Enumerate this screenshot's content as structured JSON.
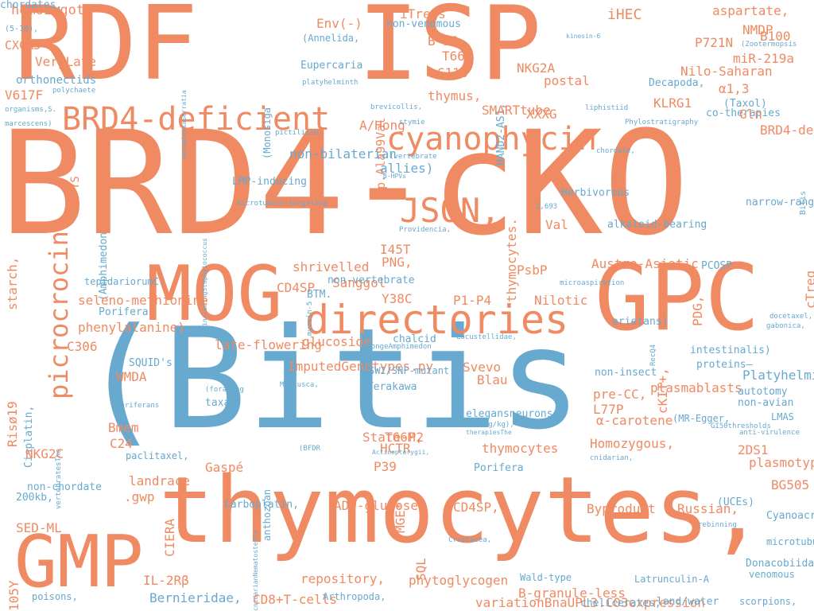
{
  "palette": {
    "orange": "#ef8a62",
    "blue": "#67a9cf"
  },
  "words": [
    {
      "t": "RDF",
      "s": 128,
      "c": "orange"
    },
    {
      "t": "ISP",
      "s": 128,
      "c": "orange"
    },
    {
      "t": "BRD4-cKO",
      "s": 180,
      "c": "orange"
    },
    {
      "t": "(Bitis",
      "s": 175,
      "c": "blue"
    },
    {
      "t": "thymocytes,",
      "s": 115,
      "c": "orange"
    },
    {
      "t": "GPC",
      "s": 115,
      "c": "orange"
    },
    {
      "t": "MOG",
      "s": 95,
      "c": "orange"
    },
    {
      "t": "GMP",
      "s": 90,
      "c": "orange"
    },
    {
      "t": "directories",
      "s": 50,
      "c": "orange"
    },
    {
      "t": "cyanophycin",
      "s": 40,
      "c": "orange"
    },
    {
      "t": "BRD4-deficient",
      "s": 40,
      "c": "orange"
    },
    {
      "t": "JSON,",
      "s": 42,
      "c": "orange"
    },
    {
      "t": "picrocrocin",
      "s": 32,
      "c": "orange"
    },
    {
      "t": "homozygote",
      "s": 17,
      "c": "orange"
    },
    {
      "t": "(5-10),",
      "s": 10,
      "c": "blue"
    },
    {
      "t": "CXCR5",
      "s": 15,
      "c": "orange"
    },
    {
      "t": "YS",
      "s": 14,
      "c": "orange"
    },
    {
      "t": "VeryLate",
      "s": 16,
      "c": "orange"
    },
    {
      "t": "orthonectids",
      "s": 14,
      "c": "blue"
    },
    {
      "t": "V617F",
      "s": 16,
      "c": "orange"
    },
    {
      "t": "polychaete",
      "s": 9,
      "c": "blue"
    },
    {
      "t": "organisms,S.",
      "s": 9,
      "c": "blue"
    },
    {
      "t": "marcescens)",
      "s": 9,
      "c": "blue"
    },
    {
      "t": "aeruginosaSerratia",
      "s": 8,
      "c": "blue"
    },
    {
      "t": "(Monosiga",
      "s": 12,
      "c": "blue"
    },
    {
      "t": "Env(-)",
      "s": 16,
      "c": "orange"
    },
    {
      "t": "iTregs",
      "s": 16,
      "c": "orange"
    },
    {
      "t": "non-venomous",
      "s": 13,
      "c": "blue"
    },
    {
      "t": "iHEC",
      "s": 18,
      "c": "orange"
    },
    {
      "t": "aspartate,",
      "s": 16,
      "c": "orange"
    },
    {
      "t": "NMDP",
      "s": 16,
      "c": "orange"
    },
    {
      "t": "B100",
      "s": 16,
      "c": "orange"
    },
    {
      "t": "(Zootermopsis",
      "s": 9,
      "c": "blue"
    },
    {
      "t": "(Annelida,",
      "s": 12,
      "c": "blue"
    },
    {
      "t": "p.Ala99Val",
      "s": 15,
      "c": "orange"
    },
    {
      "t": "B*35",
      "s": 16,
      "c": "orange"
    },
    {
      "t": "T66M",
      "s": 16,
      "c": "orange"
    },
    {
      "t": "HAND2-AS1,",
      "s": 13,
      "c": "blue"
    },
    {
      "t": "kinesin-6",
      "s": 8,
      "c": "blue"
    },
    {
      "t": "P721N",
      "s": 16,
      "c": "orange"
    },
    {
      "t": "miR-219a",
      "s": 16,
      "c": "orange"
    },
    {
      "t": "Eupercaria",
      "s": 13,
      "c": "blue"
    },
    {
      "t": "G118",
      "s": 16,
      "c": "orange"
    },
    {
      "t": "NKG2A",
      "s": 16,
      "c": "orange"
    },
    {
      "t": "Nilo-Saharan",
      "s": 16,
      "c": "orange"
    },
    {
      "t": "Bitis",
      "s": 10,
      "c": "blue"
    },
    {
      "t": "platyhelminth",
      "s": 9,
      "c": "blue"
    },
    {
      "t": "postal",
      "s": 16,
      "c": "orange"
    },
    {
      "t": "Decapoda,",
      "s": 13,
      "c": "blue"
    },
    {
      "t": "α1,3",
      "s": 16,
      "c": "orange"
    },
    {
      "t": "thymus,",
      "s": 16,
      "c": "orange"
    },
    {
      "t": "KLRG1",
      "s": 16,
      "c": "orange"
    },
    {
      "t": "(Taxol)",
      "s": 13,
      "c": "blue"
    },
    {
      "t": "brevicollis,",
      "s": 9,
      "c": "blue"
    },
    {
      "t": "SMARTtube",
      "s": 16,
      "c": "orange"
    },
    {
      "t": "XXXG",
      "s": 16,
      "c": "orange"
    },
    {
      "t": "liphistiid",
      "s": 9,
      "c": "blue"
    },
    {
      "t": "co-therapies",
      "s": 13,
      "c": "blue"
    },
    {
      "t": "Gln",
      "s": 16,
      "c": "orange"
    },
    {
      "t": "A/Hong",
      "s": 16,
      "c": "orange"
    },
    {
      "t": "stymie",
      "s": 9,
      "c": "blue"
    },
    {
      "t": "Phylostratigraphy",
      "s": 9,
      "c": "blue"
    },
    {
      "t": "BRD4-deleted",
      "s": 16,
      "c": "orange"
    },
    {
      "t": "pictilisib,",
      "s": 9,
      "c": "blue"
    },
    {
      "t": "(Amphimedon",
      "s": 13,
      "c": "blue"
    },
    {
      "t": "non-bilaterian",
      "s": 16,
      "c": "blue"
    },
    {
      "t": "(vertebrate",
      "s": 9,
      "c": "blue"
    },
    {
      "t": "allies)",
      "s": 16,
      "c": "blue"
    },
    {
      "t": "chordate,",
      "s": 9,
      "c": "blue"
    },
    {
      "t": "starch,",
      "s": 16,
      "c": "orange"
    },
    {
      "t": "includingStaphylococcus",
      "s": 8,
      "c": "blue"
    },
    {
      "t": "LMP-inducing",
      "s": 13,
      "c": "blue"
    },
    {
      "t": "myosin-5",
      "s": 9,
      "c": "blue"
    },
    {
      "t": "β-HPVs",
      "s": 8,
      "c": "blue"
    },
    {
      "t": "thymocytes.",
      "s": 16,
      "c": "orange"
    },
    {
      "t": "Herbivorous",
      "s": 13,
      "c": "blue"
    },
    {
      "t": "PDG,",
      "s": 16,
      "c": "orange"
    },
    {
      "t": "cTreg",
      "s": 16,
      "c": "orange"
    },
    {
      "t": "microtubule-targeting",
      "s": 9,
      "c": "blue"
    },
    {
      "t": "2,693",
      "s": 9,
      "c": "blue"
    },
    {
      "t": "narrow-range",
      "s": 13,
      "c": "blue"
    },
    {
      "t": "Val",
      "s": 16,
      "c": "orange"
    },
    {
      "t": "RecQ4",
      "s": 9,
      "c": "blue"
    },
    {
      "t": "Providencia,",
      "s": 9,
      "c": "blue"
    },
    {
      "t": "alkaloid-bearing",
      "s": 13,
      "c": "blue"
    },
    {
      "t": "I45T",
      "s": 16,
      "c": "orange"
    },
    {
      "t": "shrivelled",
      "s": 16,
      "c": "orange"
    },
    {
      "t": "Sanggol",
      "s": 16,
      "c": "orange"
    },
    {
      "t": "PNG,",
      "s": 16,
      "c": "orange"
    },
    {
      "t": "Austro-Asiatic",
      "s": 16,
      "c": "orange"
    },
    {
      "t": "PCOSP",
      "s": 13,
      "c": "blue"
    },
    {
      "t": "non-vertebrate",
      "s": 13,
      "c": "blue"
    },
    {
      "t": "PsbP",
      "s": 16,
      "c": "orange"
    },
    {
      "t": "cKIT+,",
      "s": 16,
      "c": "orange"
    },
    {
      "t": "tepidariorumC.",
      "s": 12,
      "c": "blue"
    },
    {
      "t": "CD4SP",
      "s": 16,
      "c": "orange"
    },
    {
      "t": "BTM.",
      "s": 13,
      "c": "blue"
    },
    {
      "t": "microaspiration",
      "s": 9,
      "c": "blue"
    },
    {
      "t": "Risø19",
      "s": 16,
      "c": "orange"
    },
    {
      "t": "seleno-methionine",
      "s": 16,
      "c": "orange"
    },
    {
      "t": "Porifera",
      "s": 13,
      "c": "blue"
    },
    {
      "t": "Y38C",
      "s": 16,
      "c": "orange"
    },
    {
      "t": "P1-P4",
      "s": 16,
      "c": "orange"
    },
    {
      "t": "Nilotic",
      "s": 16,
      "c": "orange"
    },
    {
      "t": "Cisplatin,",
      "s": 13,
      "c": "blue"
    },
    {
      "t": "phenylalanine)",
      "s": 16,
      "c": "orange"
    },
    {
      "t": "arietans)",
      "s": 13,
      "c": "blue"
    },
    {
      "t": "gabonica,",
      "s": 9,
      "c": "blue"
    },
    {
      "t": "docetaxel,",
      "s": 9,
      "c": "blue"
    },
    {
      "t": "C306",
      "s": 16,
      "c": "orange"
    },
    {
      "t": "late-flowering",
      "s": 16,
      "c": "orange"
    },
    {
      "t": "glucoside",
      "s": 16,
      "c": "orange"
    },
    {
      "t": "chalcid",
      "s": 13,
      "c": "blue"
    },
    {
      "t": "Locustellidae,",
      "s": 9,
      "c": "blue"
    },
    {
      "t": "intestinalis)",
      "s": 13,
      "c": "blue"
    },
    {
      "t": "proteins—",
      "s": 13,
      "c": "blue"
    },
    {
      "t": "vertebratesThe",
      "s": 9,
      "c": "blue"
    },
    {
      "t": "spongeAmphimedon",
      "s": 9,
      "c": "blue"
    },
    {
      "t": "ImputedGenotypes.py",
      "s": 16,
      "c": "orange"
    },
    {
      "t": "Svevo",
      "s": 16,
      "c": "orange"
    },
    {
      "t": "SWI/SNF-mutant",
      "s": 12,
      "c": "blue"
    },
    {
      "t": "non-insect",
      "s": 13,
      "c": "blue"
    },
    {
      "t": "Platyhelminthes,",
      "s": 16,
      "c": "blue"
    },
    {
      "t": "SQUID's",
      "s": 13,
      "c": "blue"
    },
    {
      "t": "WMDA",
      "s": 16,
      "c": "orange"
    },
    {
      "t": "Mollusca,",
      "s": 9,
      "c": "blue"
    },
    {
      "t": "(Terakawa",
      "s": 13,
      "c": "blue"
    },
    {
      "t": "MGE*",
      "s": 16,
      "c": "orange"
    },
    {
      "t": "Blau",
      "s": 16,
      "c": "orange"
    },
    {
      "t": "plasmablasts",
      "s": 16,
      "c": "orange"
    },
    {
      "t": "non-avian",
      "s": 13,
      "c": "blue"
    },
    {
      "t": "(foraging",
      "s": 9,
      "c": "blue"
    },
    {
      "t": "taxa:",
      "s": 13,
      "c": "blue"
    },
    {
      "t": "poriferans",
      "s": 9,
      "c": "blue"
    },
    {
      "t": "autotomy",
      "s": 13,
      "c": "blue"
    },
    {
      "t": "pre-CC,",
      "s": 16,
      "c": "orange"
    },
    {
      "t": "L77P",
      "s": 16,
      "c": "orange"
    },
    {
      "t": "LMAS",
      "s": 12,
      "c": "blue"
    },
    {
      "t": "Bmem",
      "s": 16,
      "c": "orange"
    },
    {
      "t": "CIERA",
      "s": 16,
      "c": "orange"
    },
    {
      "t": "anthozoan",
      "s": 12,
      "c": "blue"
    },
    {
      "t": "elegansneurons,",
      "s": 13,
      "c": "blue"
    },
    {
      "t": "α-carotene",
      "s": 16,
      "c": "orange"
    },
    {
      "t": "(MR-Egger,",
      "s": 12,
      "c": "blue"
    },
    {
      "t": "GI50thresholds",
      "s": 9,
      "c": "blue"
    },
    {
      "t": "C24",
      "s": 16,
      "c": "orange"
    },
    {
      "t": "50mg/kg),",
      "s": 9,
      "c": "blue"
    },
    {
      "t": "anti-virulence",
      "s": 9,
      "c": "blue"
    },
    {
      "t": "T66M,",
      "s": 16,
      "c": "orange"
    },
    {
      "t": "therapiesThe",
      "s": 8,
      "c": "blue"
    },
    {
      "t": "State-P2",
      "s": 16,
      "c": "orange"
    },
    {
      "t": "NKG2C",
      "s": 16,
      "c": "orange"
    },
    {
      "t": "(BFDR",
      "s": 9,
      "c": "blue"
    },
    {
      "t": "HCTR",
      "s": 16,
      "c": "orange"
    },
    {
      "t": "SQL",
      "s": 16,
      "c": "orange"
    },
    {
      "t": "thymocytes",
      "s": 16,
      "c": "orange"
    },
    {
      "t": "Homozygous,",
      "s": 16,
      "c": "orange"
    },
    {
      "t": "2DS1",
      "s": 16,
      "c": "orange"
    },
    {
      "t": "paclitaxel,",
      "s": 12,
      "c": "blue"
    },
    {
      "t": "P39",
      "s": 16,
      "c": "orange"
    },
    {
      "t": "105Y",
      "s": 16,
      "c": "orange"
    },
    {
      "t": "Actinopterygii,",
      "s": 8,
      "c": "blue"
    },
    {
      "t": "cnidarian,",
      "s": 9,
      "c": "blue"
    },
    {
      "t": "plasmotype.",
      "s": 16,
      "c": "orange"
    },
    {
      "t": "Gaspé",
      "s": 16,
      "c": "orange"
    },
    {
      "t": "Porifera",
      "s": 13,
      "c": "blue"
    },
    {
      "t": "landrace",
      "s": 16,
      "c": "orange"
    },
    {
      "t": "BG505",
      "s": 16,
      "c": "orange"
    },
    {
      "t": ".gwp",
      "s": 16,
      "c": "orange"
    },
    {
      "t": "200kb,",
      "s": 13,
      "c": "blue"
    },
    {
      "t": "non-chordate",
      "s": 13,
      "c": "blue"
    },
    {
      "t": "CD4SP,",
      "s": 16,
      "c": "orange"
    },
    {
      "t": "Carboplatin,",
      "s": 13,
      "c": "blue"
    },
    {
      "t": "ADP-glucose",
      "s": 16,
      "c": "orange"
    },
    {
      "t": "Byproduct",
      "s": 16,
      "c": "orange"
    },
    {
      "t": "Russian,",
      "s": 16,
      "c": "orange"
    },
    {
      "t": "(UCEs)",
      "s": 13,
      "c": "blue"
    },
    {
      "t": "Cyanoacrylate",
      "s": 13,
      "c": "blue"
    },
    {
      "t": "SED-ML",
      "s": 16,
      "c": "orange"
    },
    {
      "t": "cnidarianNematostella",
      "s": 8,
      "c": "blue"
    },
    {
      "t": "Crustacea,",
      "s": 9,
      "c": "blue"
    },
    {
      "t": "rebinning",
      "s": 9,
      "c": "blue"
    },
    {
      "t": "microtubule-guided",
      "s": 12,
      "c": "blue"
    },
    {
      "t": "IL-2Rβ",
      "s": 16,
      "c": "orange"
    },
    {
      "t": "repository,",
      "s": 16,
      "c": "orange"
    },
    {
      "t": "phytoglycogen",
      "s": 16,
      "c": "orange"
    },
    {
      "t": "Wald-type",
      "s": 12,
      "c": "blue"
    },
    {
      "t": "Latrunculin-A",
      "s": 12,
      "c": "blue"
    },
    {
      "t": "Donacobiidae",
      "s": 13,
      "c": "blue"
    },
    {
      "t": "venomous",
      "s": 12,
      "c": "blue"
    },
    {
      "t": "poisons,",
      "s": 12,
      "c": "blue"
    },
    {
      "t": "Bernieridae,",
      "s": 16,
      "c": "blue"
    },
    {
      "t": "CD8+T-cells",
      "s": 16,
      "c": "orange"
    },
    {
      "t": "Arthropoda,",
      "s": 12,
      "c": "blue"
    },
    {
      "t": "B-granule-less",
      "s": 16,
      "c": "orange"
    },
    {
      "t": "variationBnaUPL3.C03expression",
      "s": 16,
      "c": "orange"
    },
    {
      "t": "chelicerates,",
      "s": 13,
      "c": "blue"
    },
    {
      "t": "land/water",
      "s": 13,
      "c": "blue"
    },
    {
      "t": "scorpions,",
      "s": 12,
      "c": "blue"
    },
    {
      "t": "chordates,",
      "s": 13,
      "c": "blue"
    }
  ]
}
